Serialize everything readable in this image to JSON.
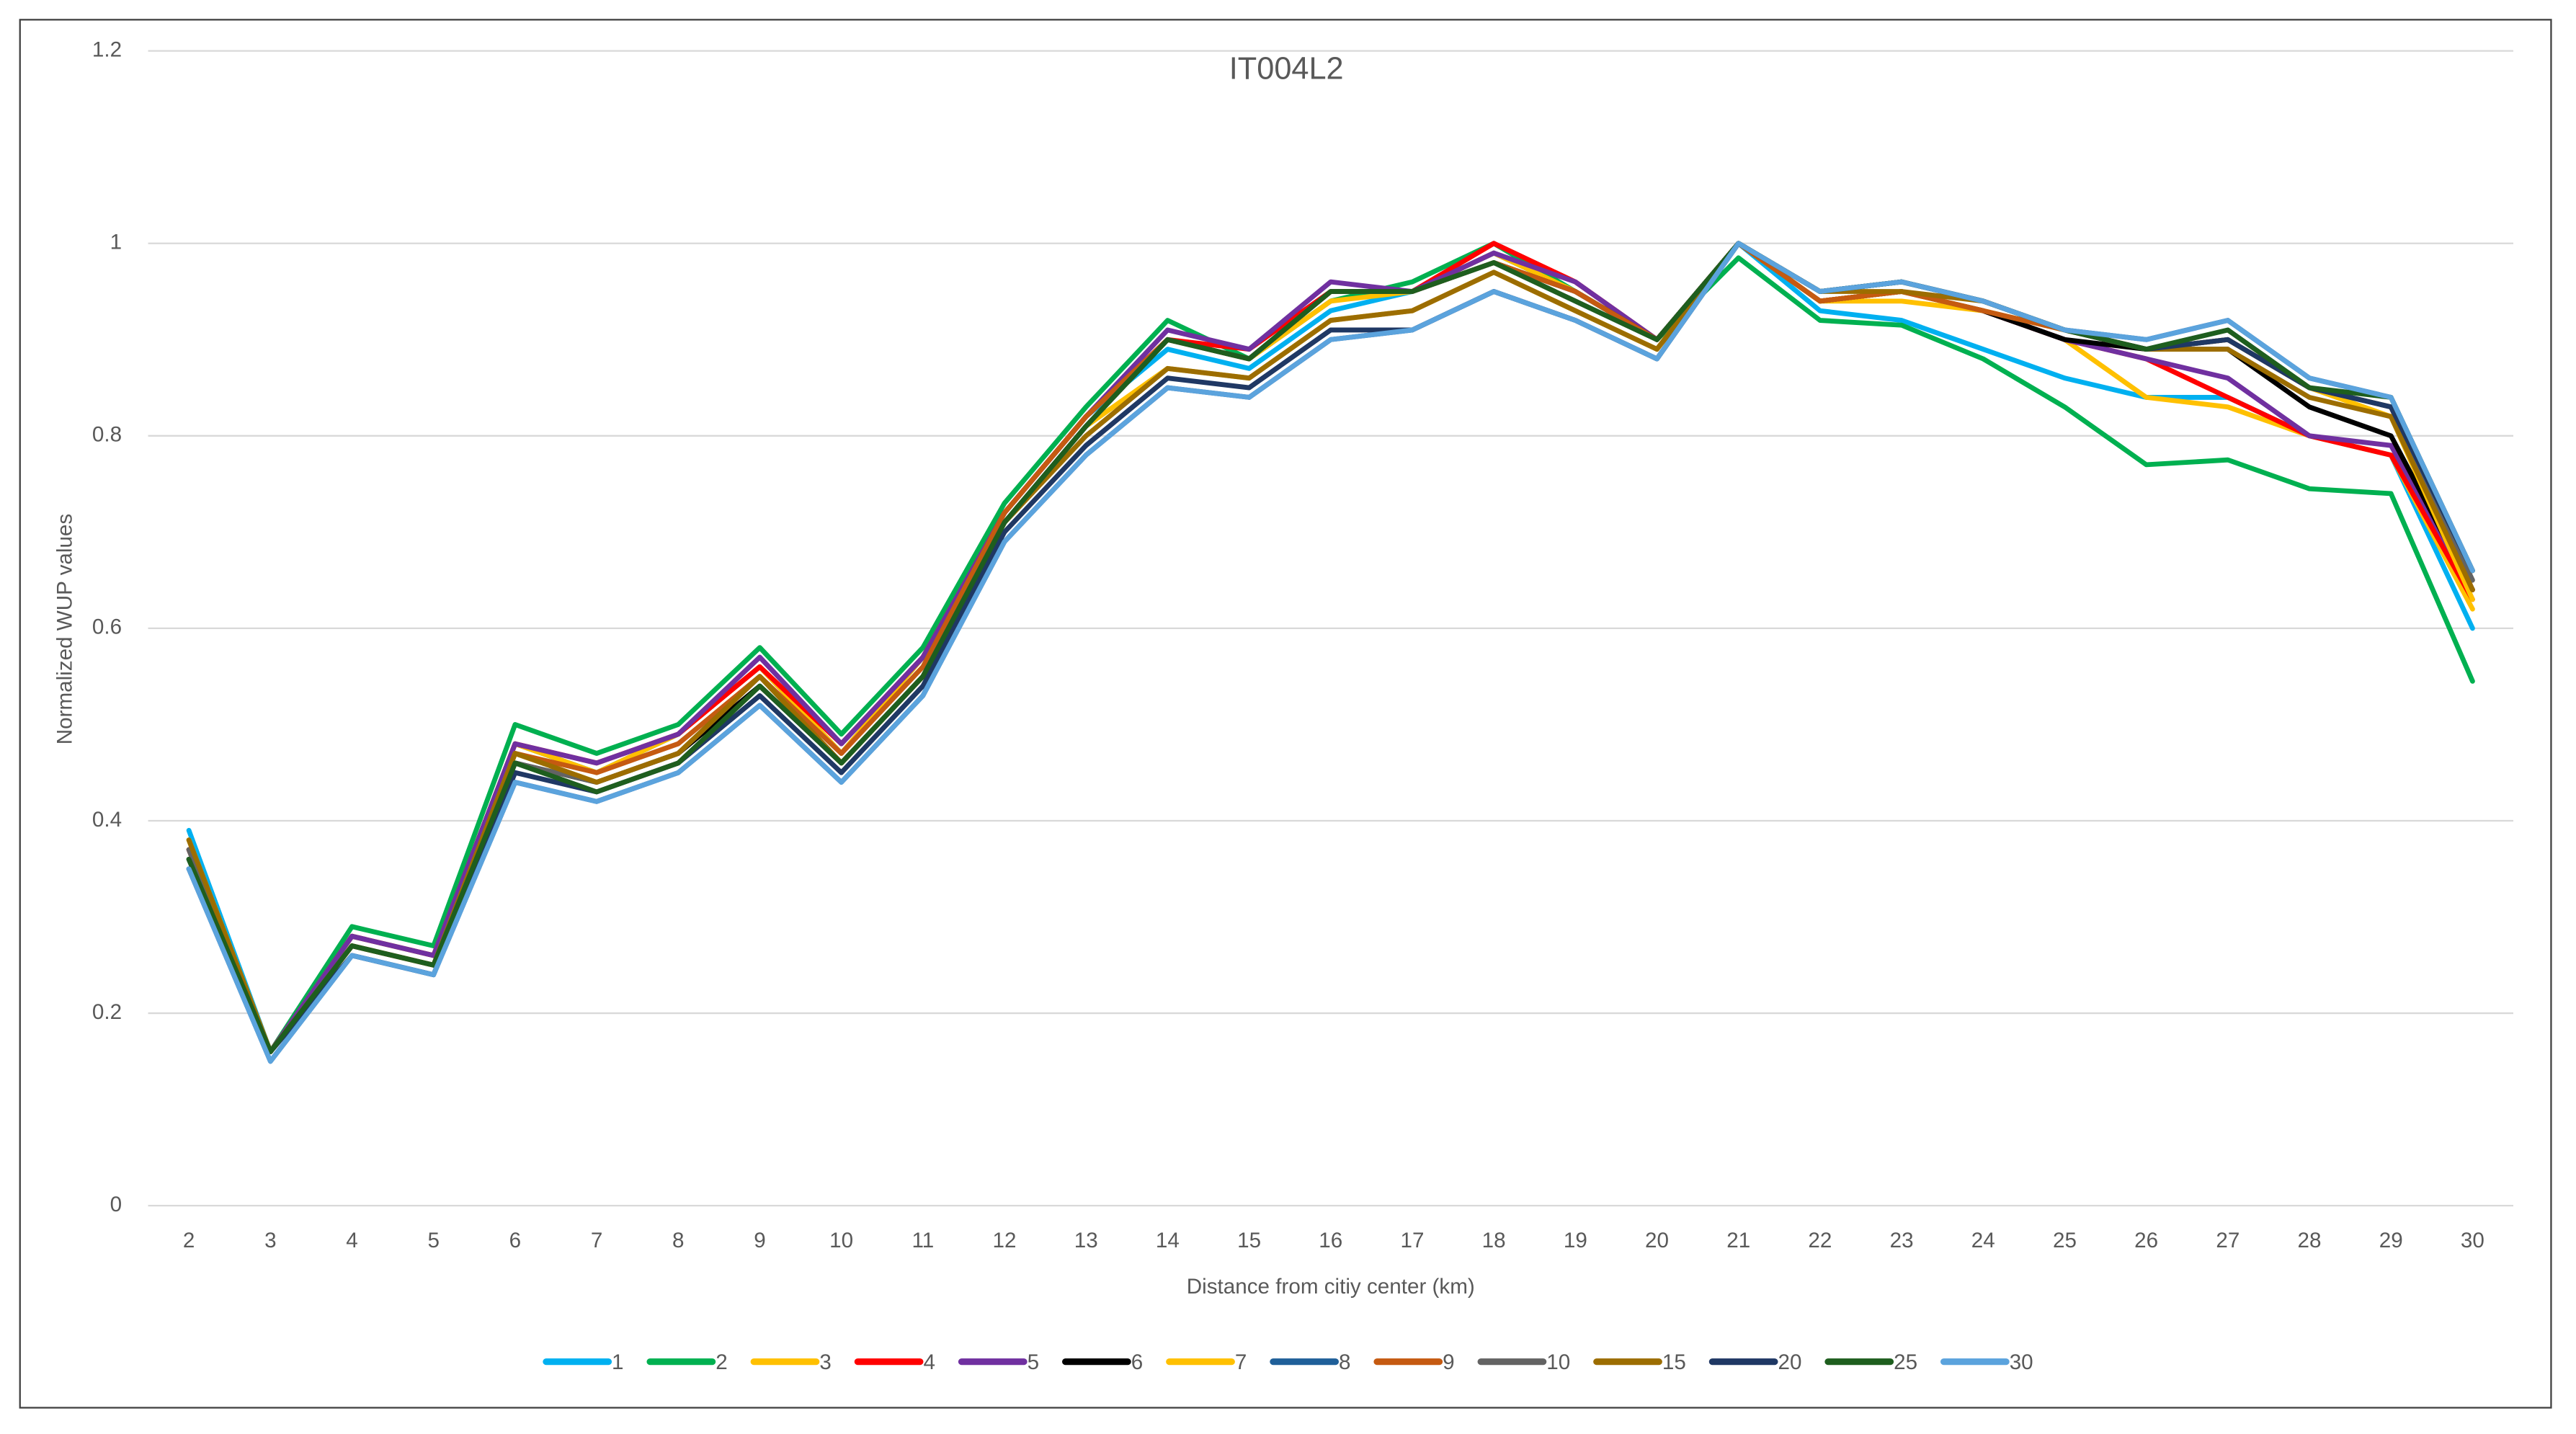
{
  "chart_data": {
    "type": "line",
    "title": "IT004L2",
    "x_label": "Distance from citiy center (km)",
    "y_label": "Normalized WUP values",
    "categories": [
      2,
      3,
      4,
      5,
      6,
      7,
      8,
      9,
      10,
      11,
      12,
      13,
      14,
      15,
      16,
      17,
      18,
      19,
      20,
      21,
      22,
      23,
      24,
      25,
      26,
      27,
      28,
      29,
      30
    ],
    "ylim": [
      0,
      1.2
    ],
    "yticks": [
      0,
      0.2,
      0.4,
      0.6,
      0.8,
      1,
      1.2
    ],
    "grid": true,
    "legend": "bottom",
    "series": [
      {
        "name": "1",
        "color": "#00b0f0",
        "values": [
          0.39,
          0.16,
          0.28,
          0.26,
          0.48,
          0.45,
          0.49,
          0.56,
          0.47,
          0.57,
          0.72,
          0.82,
          0.89,
          0.87,
          0.93,
          0.95,
          0.99,
          0.95,
          0.9,
          1.0,
          0.93,
          0.92,
          0.89,
          0.86,
          0.84,
          0.84,
          0.8,
          0.78,
          0.6
        ]
      },
      {
        "name": "2",
        "color": "#00b050",
        "values": [
          0.36,
          0.16,
          0.29,
          0.27,
          0.5,
          0.47,
          0.5,
          0.58,
          0.49,
          0.58,
          0.73,
          0.83,
          0.92,
          0.88,
          0.94,
          0.96,
          1.0,
          0.95,
          0.9,
          0.985,
          0.92,
          0.915,
          0.88,
          0.83,
          0.77,
          0.775,
          0.745,
          0.74,
          0.545
        ]
      },
      {
        "name": "3",
        "color": "#ffc000",
        "values": [
          0.38,
          0.16,
          0.28,
          0.26,
          0.48,
          0.45,
          0.49,
          0.56,
          0.47,
          0.57,
          0.72,
          0.82,
          0.9,
          0.88,
          0.94,
          0.95,
          0.99,
          0.95,
          0.9,
          1.0,
          0.94,
          0.94,
          0.93,
          0.9,
          0.84,
          0.83,
          0.8,
          0.78,
          0.62
        ]
      },
      {
        "name": "4",
        "color": "#ff0000",
        "values": [
          0.37,
          0.16,
          0.28,
          0.26,
          0.48,
          0.46,
          0.49,
          0.56,
          0.48,
          0.57,
          0.72,
          0.82,
          0.9,
          0.89,
          0.95,
          0.95,
          1.0,
          0.96,
          0.9,
          1.0,
          0.94,
          0.95,
          0.93,
          0.9,
          0.88,
          0.84,
          0.8,
          0.78,
          0.63
        ]
      },
      {
        "name": "5",
        "color": "#7030a0",
        "values": [
          0.37,
          0.16,
          0.28,
          0.26,
          0.48,
          0.46,
          0.49,
          0.57,
          0.48,
          0.57,
          0.72,
          0.82,
          0.91,
          0.89,
          0.96,
          0.95,
          0.99,
          0.96,
          0.9,
          1.0,
          0.94,
          0.95,
          0.93,
          0.9,
          0.88,
          0.86,
          0.8,
          0.79,
          0.64
        ]
      },
      {
        "name": "6",
        "color": "#000000",
        "values": [
          0.36,
          0.16,
          0.27,
          0.25,
          0.46,
          0.44,
          0.47,
          0.54,
          0.46,
          0.55,
          0.71,
          0.81,
          0.9,
          0.88,
          0.95,
          0.95,
          0.98,
          0.95,
          0.9,
          1.0,
          0.94,
          0.95,
          0.93,
          0.9,
          0.89,
          0.89,
          0.83,
          0.8,
          0.64
        ]
      },
      {
        "name": "7",
        "color": "#ffc000",
        "values": [
          0.38,
          0.16,
          0.27,
          0.25,
          0.47,
          0.44,
          0.47,
          0.55,
          0.46,
          0.55,
          0.71,
          0.81,
          0.87,
          0.86,
          0.92,
          0.93,
          0.97,
          0.93,
          0.89,
          1.0,
          0.94,
          0.95,
          0.93,
          0.91,
          0.89,
          0.9,
          0.85,
          0.82,
          0.63
        ]
      },
      {
        "name": "8",
        "color": "#1f5f99",
        "values": [
          0.35,
          0.15,
          0.26,
          0.24,
          0.44,
          0.42,
          0.45,
          0.52,
          0.44,
          0.53,
          0.69,
          0.78,
          0.85,
          0.84,
          0.9,
          0.91,
          0.95,
          0.92,
          0.88,
          1.0,
          0.95,
          0.96,
          0.94,
          0.91,
          0.9,
          0.92,
          0.86,
          0.84,
          0.66
        ]
      },
      {
        "name": "9",
        "color": "#c55a11",
        "values": [
          0.37,
          0.16,
          0.27,
          0.25,
          0.47,
          0.45,
          0.48,
          0.55,
          0.47,
          0.56,
          0.72,
          0.82,
          0.9,
          0.88,
          0.95,
          0.95,
          0.98,
          0.95,
          0.9,
          1.0,
          0.94,
          0.95,
          0.93,
          0.91,
          0.89,
          0.9,
          0.85,
          0.83,
          0.64
        ]
      },
      {
        "name": "10",
        "color": "#636363",
        "values": [
          0.37,
          0.16,
          0.27,
          0.25,
          0.46,
          0.44,
          0.47,
          0.55,
          0.46,
          0.55,
          0.71,
          0.81,
          0.9,
          0.88,
          0.95,
          0.95,
          0.98,
          0.94,
          0.9,
          1.0,
          0.95,
          0.96,
          0.94,
          0.91,
          0.89,
          0.9,
          0.85,
          0.83,
          0.65
        ]
      },
      {
        "name": "15",
        "color": "#9c6d00",
        "values": [
          0.38,
          0.16,
          0.27,
          0.25,
          0.47,
          0.44,
          0.47,
          0.55,
          0.46,
          0.55,
          0.71,
          0.8,
          0.87,
          0.86,
          0.92,
          0.93,
          0.97,
          0.93,
          0.89,
          1.0,
          0.95,
          0.95,
          0.94,
          0.91,
          0.89,
          0.89,
          0.84,
          0.82,
          0.64
        ]
      },
      {
        "name": "20",
        "color": "#1f3864",
        "values": [
          0.35,
          0.16,
          0.26,
          0.24,
          0.45,
          0.43,
          0.46,
          0.53,
          0.45,
          0.54,
          0.7,
          0.79,
          0.86,
          0.85,
          0.91,
          0.91,
          0.95,
          0.92,
          0.88,
          1.0,
          0.95,
          0.96,
          0.94,
          0.91,
          0.89,
          0.9,
          0.85,
          0.83,
          0.66
        ]
      },
      {
        "name": "25",
        "color": "#1e5e1e",
        "values": [
          0.36,
          0.16,
          0.27,
          0.25,
          0.46,
          0.43,
          0.46,
          0.54,
          0.46,
          0.55,
          0.71,
          0.81,
          0.9,
          0.88,
          0.95,
          0.95,
          0.98,
          0.94,
          0.9,
          1.0,
          0.95,
          0.96,
          0.94,
          0.91,
          0.89,
          0.91,
          0.85,
          0.84,
          0.66
        ]
      },
      {
        "name": "30",
        "color": "#5ba3dd",
        "values": [
          0.35,
          0.15,
          0.26,
          0.24,
          0.44,
          0.42,
          0.45,
          0.52,
          0.44,
          0.53,
          0.69,
          0.78,
          0.85,
          0.84,
          0.9,
          0.91,
          0.95,
          0.92,
          0.88,
          1.0,
          0.95,
          0.96,
          0.94,
          0.91,
          0.9,
          0.92,
          0.86,
          0.84,
          0.66
        ]
      }
    ]
  }
}
